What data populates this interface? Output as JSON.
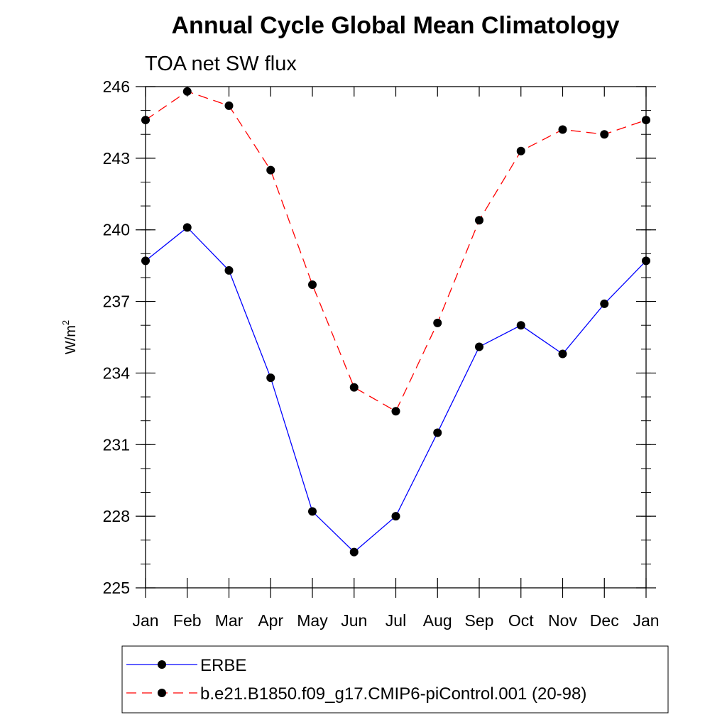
{
  "chart_data": {
    "type": "line",
    "title": "Annual Cycle Global Mean Climatology",
    "subtitle": "TOA net SW flux",
    "ylabel_base": "W/m",
    "ylabel_sup": "2",
    "xlabel": "",
    "categories": [
      "Jan",
      "Feb",
      "Mar",
      "Apr",
      "May",
      "Jun",
      "Jul",
      "Aug",
      "Sep",
      "Oct",
      "Nov",
      "Dec",
      "Jan"
    ],
    "ylim": [
      225,
      246
    ],
    "yticks": [
      225,
      228,
      231,
      234,
      237,
      240,
      243,
      246
    ],
    "yticks_minor_step": 1,
    "grid": false,
    "legend_position": "bottom",
    "series": [
      {
        "name": "ERBE",
        "color": "#0000ff",
        "dash": "solid",
        "marker": "filled-circle",
        "values": [
          238.7,
          240.1,
          238.3,
          233.8,
          228.2,
          226.5,
          228.0,
          231.5,
          235.1,
          236.0,
          234.8,
          236.9,
          238.7
        ]
      },
      {
        "name": "b.e21.B1850.f09_g17.CMIP6-piControl.001 (20-98)",
        "color": "#ff0000",
        "dash": "dashed",
        "marker": "filled-circle",
        "values": [
          244.6,
          245.8,
          245.2,
          242.5,
          237.7,
          233.4,
          232.4,
          236.1,
          240.4,
          243.3,
          244.2,
          244.0,
          244.6
        ]
      }
    ]
  }
}
